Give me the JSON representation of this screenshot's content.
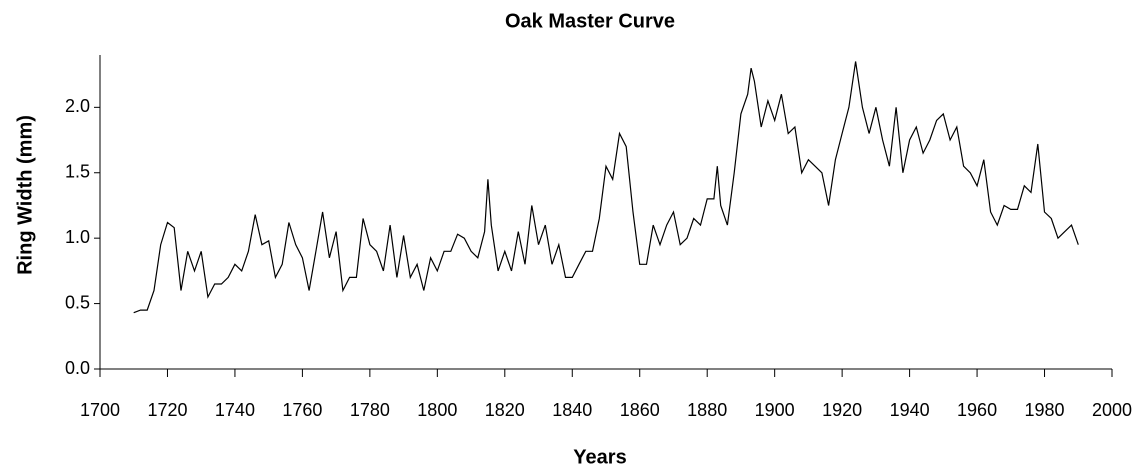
{
  "chart_data": {
    "type": "line",
    "title": "Oak Master Curve",
    "x_label": "Years",
    "y_label": "Ring Width (mm)",
    "x": [
      1710,
      1712,
      1714,
      1716,
      1718,
      1720,
      1722,
      1724,
      1726,
      1728,
      1730,
      1732,
      1734,
      1736,
      1738,
      1740,
      1742,
      1744,
      1746,
      1748,
      1750,
      1752,
      1754,
      1756,
      1758,
      1760,
      1762,
      1764,
      1766,
      1768,
      1770,
      1772,
      1774,
      1776,
      1778,
      1780,
      1782,
      1784,
      1786,
      1788,
      1790,
      1792,
      1794,
      1796,
      1798,
      1800,
      1802,
      1804,
      1806,
      1808,
      1810,
      1812,
      1814,
      1815,
      1816,
      1818,
      1820,
      1822,
      1824,
      1826,
      1828,
      1830,
      1832,
      1834,
      1836,
      1838,
      1840,
      1842,
      1844,
      1846,
      1848,
      1850,
      1852,
      1854,
      1856,
      1858,
      1860,
      1862,
      1864,
      1866,
      1868,
      1870,
      1872,
      1874,
      1876,
      1878,
      1880,
      1882,
      1883,
      1884,
      1886,
      1888,
      1890,
      1892,
      1893,
      1894,
      1896,
      1898,
      1900,
      1902,
      1904,
      1906,
      1908,
      1910,
      1912,
      1914,
      1916,
      1918,
      1920,
      1922,
      1924,
      1926,
      1928,
      1930,
      1932,
      1934,
      1936,
      1938,
      1940,
      1942,
      1944,
      1946,
      1948,
      1950,
      1952,
      1954,
      1956,
      1958,
      1960,
      1962,
      1964,
      1966,
      1968,
      1970,
      1972,
      1974,
      1976,
      1978,
      1980,
      1982,
      1984,
      1986,
      1988,
      1990
    ],
    "series": [
      {
        "name": "Ring Width",
        "color": "#000000",
        "values": [
          0.43,
          0.45,
          0.45,
          0.6,
          0.95,
          1.12,
          1.08,
          0.6,
          0.9,
          0.75,
          0.9,
          0.55,
          0.65,
          0.65,
          0.7,
          0.8,
          0.75,
          0.9,
          1.18,
          0.95,
          0.98,
          0.7,
          0.8,
          1.12,
          0.95,
          0.85,
          0.6,
          0.9,
          1.2,
          0.85,
          1.05,
          0.6,
          0.7,
          0.7,
          1.15,
          0.95,
          0.9,
          0.75,
          1.1,
          0.7,
          1.02,
          0.7,
          0.8,
          0.6,
          0.85,
          0.75,
          0.9,
          0.9,
          1.03,
          1.0,
          0.9,
          0.85,
          1.05,
          1.45,
          1.1,
          0.75,
          0.9,
          0.75,
          1.05,
          0.8,
          1.25,
          0.95,
          1.1,
          0.8,
          0.95,
          0.7,
          0.7,
          0.8,
          0.9,
          0.9,
          1.15,
          1.55,
          1.45,
          1.8,
          1.7,
          1.2,
          0.8,
          0.8,
          1.1,
          0.95,
          1.1,
          1.2,
          0.95,
          1.0,
          1.15,
          1.1,
          1.3,
          1.3,
          1.55,
          1.25,
          1.1,
          1.5,
          1.95,
          2.1,
          2.3,
          2.2,
          1.85,
          2.05,
          1.9,
          2.1,
          1.8,
          1.85,
          1.5,
          1.6,
          1.55,
          1.5,
          1.25,
          1.6,
          1.8,
          2.0,
          2.35,
          2.0,
          1.8,
          2.0,
          1.75,
          1.55,
          2.0,
          1.5,
          1.75,
          1.85,
          1.65,
          1.75,
          1.9,
          1.95,
          1.75,
          1.85,
          1.55,
          1.5,
          1.4,
          1.6,
          1.2,
          1.1,
          1.25,
          1.22,
          1.22,
          1.4,
          1.35,
          1.72,
          1.2,
          1.15,
          1.0,
          1.05,
          1.1,
          0.95
        ]
      }
    ],
    "xlim": [
      1700,
      2000
    ],
    "xticks": [
      1700,
      1720,
      1740,
      1760,
      1780,
      1800,
      1820,
      1840,
      1860,
      1880,
      1900,
      1920,
      1940,
      1960,
      1980,
      2000
    ],
    "ylim": [
      0,
      2.4
    ],
    "yticks": [
      {
        "value": 0,
        "label": "0.0"
      },
      0.5,
      {
        "value": 1,
        "label": "1.0"
      },
      1.5,
      {
        "value": 2,
        "label": "2.0"
      }
    ],
    "grid": false
  }
}
